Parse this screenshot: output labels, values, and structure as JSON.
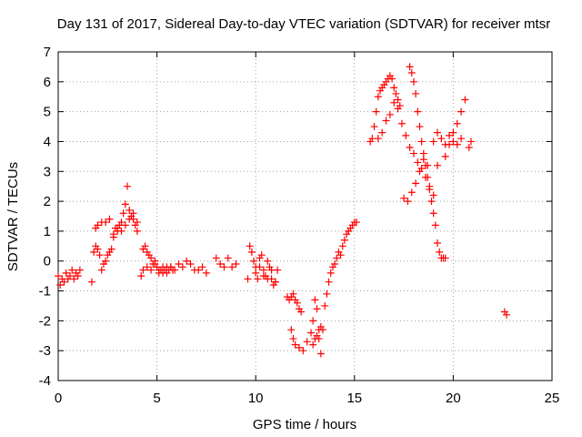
{
  "chart_data": {
    "type": "scatter",
    "title": "Day 131 of 2017, Sidereal Day-to-day VTEC variation (SDTVAR) for receiver mtsr",
    "xlabel": "GPS time / hours",
    "ylabel": "SDTVAR / TECUs",
    "xlim": [
      0,
      25
    ],
    "ylim": [
      -4,
      7
    ],
    "xticks": [
      "0",
      "5",
      "10",
      "15",
      "20",
      "25"
    ],
    "yticks": [
      "-4",
      "-3",
      "-2",
      "-1",
      "0",
      "1",
      "2",
      "3",
      "4",
      "5",
      "6",
      "7"
    ],
    "grid": true,
    "marker": "plus",
    "color": "#ff0000",
    "series": [
      {
        "x": [
          0.0,
          0.1,
          0.2,
          0.3,
          0.4,
          0.5,
          0.6,
          0.7,
          0.8,
          0.9,
          1.0,
          1.1,
          1.7,
          1.8,
          1.9,
          2.0,
          2.1,
          2.2,
          2.3,
          2.4,
          2.5,
          2.6,
          2.7,
          2.8,
          2.9,
          3.0,
          3.1,
          3.2,
          3.3,
          3.4,
          3.5,
          3.6,
          3.7,
          3.8,
          3.9,
          4.0,
          1.9,
          2.0,
          2.2,
          2.4,
          2.6,
          2.8,
          3.0,
          3.2,
          3.4,
          3.6,
          3.8,
          4.0,
          4.2,
          4.3,
          4.4,
          4.5,
          4.6,
          4.7,
          4.8,
          4.9,
          5.0,
          5.1,
          5.2,
          5.3,
          5.4,
          5.5,
          5.6,
          5.7,
          5.8,
          4.3,
          4.5,
          4.7,
          4.9,
          5.1,
          5.3,
          5.5,
          5.7,
          5.9,
          6.1,
          6.3,
          6.5,
          6.7,
          6.9,
          7.1,
          7.3,
          7.5,
          8.0,
          8.2,
          8.4,
          8.6,
          8.8,
          9.0,
          9.6,
          9.7,
          9.8,
          9.9,
          10.0,
          10.1,
          10.2,
          10.3,
          10.4,
          10.5,
          10.6,
          10.7,
          10.8,
          10.9,
          11.0,
          11.1,
          10.0,
          10.2,
          10.4,
          10.6,
          10.8,
          11.0,
          11.6,
          11.7,
          11.8,
          11.9,
          12.0,
          12.1,
          12.2,
          12.3,
          11.8,
          11.9,
          12.0,
          12.2,
          12.4,
          12.6,
          12.8,
          12.9,
          13.0,
          13.1,
          13.2,
          13.3,
          12.9,
          13.0,
          13.1,
          13.2,
          13.3,
          13.4,
          13.5,
          13.6,
          13.7,
          13.8,
          13.9,
          14.0,
          14.1,
          14.2,
          14.3,
          14.4,
          14.5,
          14.6,
          14.7,
          14.8,
          14.9,
          15.0,
          15.1,
          15.8,
          15.9,
          16.0,
          16.1,
          16.2,
          16.3,
          16.4,
          16.5,
          16.6,
          16.7,
          16.8,
          16.9,
          17.0,
          17.1,
          17.2,
          17.3,
          16.2,
          16.4,
          16.6,
          16.8,
          17.0,
          17.2,
          17.4,
          17.6,
          17.8,
          17.9,
          18.0,
          18.1,
          18.2,
          18.3,
          18.4,
          18.5,
          18.6,
          18.7,
          18.8,
          18.9,
          19.0,
          19.1,
          19.2,
          19.3,
          19.4,
          19.5,
          19.6,
          17.5,
          17.7,
          17.9,
          18.1,
          18.3,
          18.5,
          18.7,
          17.8,
          18.0,
          18.2,
          18.4,
          18.6,
          18.8,
          19.0,
          19.2,
          19.0,
          19.2,
          19.4,
          19.6,
          19.8,
          20.0,
          20.2,
          20.4,
          19.6,
          19.8,
          20.0,
          20.2,
          20.4,
          20.6,
          20.8,
          20.9,
          22.6,
          22.7
        ],
        "y": [
          -0.5,
          -0.8,
          -0.6,
          -0.7,
          -0.4,
          -0.6,
          -0.5,
          -0.3,
          -0.6,
          -0.4,
          -0.5,
          -0.3,
          -0.7,
          0.3,
          0.5,
          0.4,
          0.2,
          -0.3,
          -0.1,
          0.0,
          0.2,
          0.3,
          0.4,
          0.8,
          1.1,
          1.0,
          1.2,
          1.3,
          1.6,
          1.9,
          2.5,
          1.7,
          1.5,
          1.4,
          1.2,
          1.0,
          1.1,
          1.2,
          1.3,
          1.3,
          1.4,
          0.9,
          1.1,
          1.0,
          1.2,
          1.4,
          1.6,
          1.3,
          -0.5,
          0.4,
          0.5,
          0.3,
          0.2,
          0.1,
          -0.1,
          0.0,
          -0.2,
          -0.4,
          -0.3,
          -0.2,
          -0.3,
          -0.4,
          -0.3,
          -0.2,
          -0.3,
          -0.3,
          -0.2,
          -0.3,
          -0.1,
          -0.3,
          -0.4,
          -0.2,
          -0.2,
          -0.3,
          -0.1,
          -0.2,
          0.0,
          -0.1,
          -0.3,
          -0.3,
          -0.2,
          -0.4,
          0.1,
          -0.1,
          -0.2,
          0.1,
          -0.2,
          -0.1,
          -0.6,
          0.5,
          0.3,
          0.0,
          -0.2,
          -0.6,
          0.1,
          0.2,
          -0.3,
          -0.5,
          0.0,
          -0.2,
          -0.6,
          -0.8,
          -0.7,
          -0.3,
          -0.4,
          -0.2,
          -0.5,
          -0.6,
          -0.3,
          -0.7,
          -1.2,
          -1.3,
          -1.2,
          -1.1,
          -1.3,
          -1.4,
          -1.6,
          -1.7,
          -2.3,
          -2.6,
          -2.8,
          -2.9,
          -3.0,
          -2.7,
          -2.4,
          -2.0,
          -1.3,
          -1.6,
          -2.3,
          -2.2,
          -2.8,
          -2.6,
          -2.5,
          -2.6,
          -3.1,
          -2.3,
          -1.5,
          -1.1,
          -0.7,
          -0.4,
          -0.2,
          -0.1,
          0.1,
          0.3,
          0.2,
          0.5,
          0.7,
          0.9,
          1.0,
          1.1,
          1.2,
          1.3,
          1.3,
          4.0,
          4.1,
          4.5,
          5.0,
          5.5,
          5.7,
          5.8,
          5.9,
          6.0,
          6.1,
          6.2,
          6.1,
          5.8,
          5.6,
          5.4,
          5.2,
          4.1,
          4.3,
          4.7,
          4.9,
          5.3,
          5.1,
          4.6,
          4.2,
          6.5,
          6.3,
          6.0,
          5.6,
          5.0,
          4.5,
          4.0,
          3.6,
          3.2,
          2.8,
          2.4,
          2.0,
          1.6,
          1.2,
          0.6,
          0.3,
          0.1,
          0.1,
          0.1,
          2.1,
          2.0,
          2.3,
          2.6,
          3.0,
          3.4,
          3.2,
          3.8,
          3.6,
          3.3,
          3.1,
          2.8,
          2.5,
          2.2,
          3.2,
          4.0,
          4.3,
          4.1,
          3.9,
          4.2,
          4.0,
          3.9,
          4.1,
          3.5,
          3.9,
          4.3,
          4.6,
          5.0,
          5.4,
          3.8,
          4.0,
          -1.7,
          -1.8
        ]
      }
    ]
  }
}
